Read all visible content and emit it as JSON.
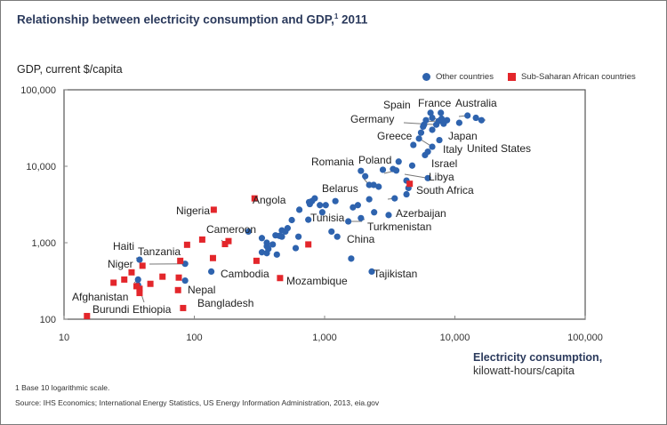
{
  "chart_data": {
    "type": "scatter",
    "title": "Relationship between electricity consumption and GDP,",
    "title_superscript": "1",
    "title_year": "2011",
    "ylabel": "GDP, current $/capita",
    "xlabel": "Electricity consumption,",
    "xlabel_unit": "kilowatt-hours/capita",
    "xscale": "log",
    "yscale": "log",
    "xlim": [
      10,
      100000
    ],
    "ylim": [
      100,
      100000
    ],
    "x_ticks": [
      10,
      100,
      1000,
      10000,
      100000
    ],
    "x_tick_labels": [
      "10",
      "100",
      "1,000",
      "10,000",
      "100,000"
    ],
    "y_ticks": [
      100,
      1000,
      10000,
      100000
    ],
    "y_tick_labels": [
      "100",
      "1,000",
      "10,000",
      "100,000"
    ],
    "grid": false,
    "legend_position": "top-right",
    "series": [
      {
        "name": "Other countries",
        "color": "#2e63ae",
        "marker": "circle",
        "points": [
          {
            "x": 38,
            "y": 600,
            "label": "Haiti"
          },
          {
            "x": 37,
            "y": 330,
            "label": "Niger"
          },
          {
            "x": 85,
            "y": 530,
            "label": "Cambodia"
          },
          {
            "x": 135,
            "y": 420,
            "label": "Bangladesh"
          },
          {
            "x": 85,
            "y": 320,
            "label": "Nepal"
          },
          {
            "x": 37,
            "y": 280
          },
          {
            "x": 260,
            "y": 1400
          },
          {
            "x": 330,
            "y": 1150
          },
          {
            "x": 360,
            "y": 1000
          },
          {
            "x": 330,
            "y": 750
          },
          {
            "x": 360,
            "y": 900
          },
          {
            "x": 400,
            "y": 950
          },
          {
            "x": 370,
            "y": 830
          },
          {
            "x": 360,
            "y": 730
          },
          {
            "x": 430,
            "y": 700
          },
          {
            "x": 470,
            "y": 1450
          },
          {
            "x": 470,
            "y": 1200
          },
          {
            "x": 420,
            "y": 1250
          },
          {
            "x": 450,
            "y": 1230
          },
          {
            "x": 500,
            "y": 1400
          },
          {
            "x": 520,
            "y": 1550
          },
          {
            "x": 560,
            "y": 1980
          },
          {
            "x": 600,
            "y": 850
          },
          {
            "x": 630,
            "y": 1200
          },
          {
            "x": 640,
            "y": 2700
          },
          {
            "x": 770,
            "y": 3200
          },
          {
            "x": 800,
            "y": 3500
          },
          {
            "x": 760,
            "y": 3400
          },
          {
            "x": 840,
            "y": 3800
          },
          {
            "x": 920,
            "y": 3100
          },
          {
            "x": 1020,
            "y": 3100
          },
          {
            "x": 960,
            "y": 2500
          },
          {
            "x": 1210,
            "y": 3500
          },
          {
            "x": 750,
            "y": 2000
          },
          {
            "x": 1130,
            "y": 1400
          },
          {
            "x": 1250,
            "y": 1200,
            "label": "Tunisia"
          },
          {
            "x": 1650,
            "y": 2900
          },
          {
            "x": 1520,
            "y": 1900,
            "label": "China"
          },
          {
            "x": 1900,
            "y": 2100,
            "label": "Turkmenistan"
          },
          {
            "x": 1800,
            "y": 3100
          },
          {
            "x": 2200,
            "y": 3700
          },
          {
            "x": 2400,
            "y": 2500,
            "label": "Azerbaijan"
          },
          {
            "x": 3100,
            "y": 2300
          },
          {
            "x": 1600,
            "y": 620
          },
          {
            "x": 2300,
            "y": 420,
            "label": "Tajikistan"
          },
          {
            "x": 1900,
            "y": 8700
          },
          {
            "x": 2050,
            "y": 7400
          },
          {
            "x": 2200,
            "y": 5700,
            "label": "Romania"
          },
          {
            "x": 2380,
            "y": 5700
          },
          {
            "x": 2600,
            "y": 5400
          },
          {
            "x": 3450,
            "y": 3800,
            "label": "Belarus"
          },
          {
            "x": 2800,
            "y": 9000
          },
          {
            "x": 3350,
            "y": 9200
          },
          {
            "x": 3550,
            "y": 8800,
            "label": "Poland"
          },
          {
            "x": 3700,
            "y": 11500
          },
          {
            "x": 4250,
            "y": 6500
          },
          {
            "x": 4400,
            "y": 5200
          },
          {
            "x": 4250,
            "y": 4300
          },
          {
            "x": 4700,
            "y": 10200
          },
          {
            "x": 6200,
            "y": 7000,
            "label": "Libya"
          },
          {
            "x": 4800,
            "y": 19000
          },
          {
            "x": 5900,
            "y": 14000
          },
          {
            "x": 6200,
            "y": 15500,
            "label": "Israel"
          },
          {
            "x": 5300,
            "y": 23000
          },
          {
            "x": 5500,
            "y": 27500,
            "label": "Greece"
          },
          {
            "x": 5700,
            "y": 33000
          },
          {
            "x": 6000,
            "y": 40000
          },
          {
            "x": 5800,
            "y": 35000,
            "label": "Spain"
          },
          {
            "x": 6500,
            "y": 50000
          },
          {
            "x": 6700,
            "y": 30000
          },
          {
            "x": 6700,
            "y": 43000
          },
          {
            "x": 7200,
            "y": 35000,
            "label": "Germany"
          },
          {
            "x": 7800,
            "y": 50000
          },
          {
            "x": 7500,
            "y": 39000,
            "label": "France"
          },
          {
            "x": 7900,
            "y": 42000
          },
          {
            "x": 8200,
            "y": 36000
          },
          {
            "x": 8700,
            "y": 40000,
            "label": "Japan"
          },
          {
            "x": 8100,
            "y": 38000
          },
          {
            "x": 6700,
            "y": 18000,
            "label": "Italy"
          },
          {
            "x": 7600,
            "y": 22000
          },
          {
            "x": 10800,
            "y": 37000
          },
          {
            "x": 12500,
            "y": 46000,
            "label": "Australia"
          },
          {
            "x": 14500,
            "y": 43000
          },
          {
            "x": 16000,
            "y": 40000,
            "label": "United States"
          }
        ]
      },
      {
        "name": "Sub-Saharan African countries",
        "color": "#e3262b",
        "marker": "square",
        "points": [
          {
            "x": 15,
            "y": 110,
            "label": "Burundi"
          },
          {
            "x": 24,
            "y": 300
          },
          {
            "x": 29,
            "y": 330
          },
          {
            "x": 33,
            "y": 410
          },
          {
            "x": 36,
            "y": 270,
            "label": "Afghanistan"
          },
          {
            "x": 38,
            "y": 250,
            "label": "Ethiopia"
          },
          {
            "x": 38,
            "y": 220
          },
          {
            "x": 40,
            "y": 500
          },
          {
            "x": 46,
            "y": 290
          },
          {
            "x": 57,
            "y": 360,
            "label": "Tanzania"
          },
          {
            "x": 76,
            "y": 350
          },
          {
            "x": 75,
            "y": 240
          },
          {
            "x": 78,
            "y": 580
          },
          {
            "x": 82,
            "y": 140
          },
          {
            "x": 88,
            "y": 940
          },
          {
            "x": 115,
            "y": 1100
          },
          {
            "x": 141,
            "y": 2700,
            "label": "Nigeria"
          },
          {
            "x": 139,
            "y": 630
          },
          {
            "x": 172,
            "y": 960,
            "label": "Cameroon"
          },
          {
            "x": 183,
            "y": 1050
          },
          {
            "x": 290,
            "y": 3800,
            "label": "Angola"
          },
          {
            "x": 300,
            "y": 580
          },
          {
            "x": 455,
            "y": 345,
            "label": "Mozambique"
          },
          {
            "x": 750,
            "y": 950
          },
          {
            "x": 4500,
            "y": 5900,
            "label": "South Africa"
          }
        ]
      }
    ],
    "annotations": [
      {
        "text": "Spain"
      },
      {
        "text": "France"
      },
      {
        "text": "Australia"
      },
      {
        "text": "Germany"
      },
      {
        "text": "Greece"
      },
      {
        "text": "Japan"
      },
      {
        "text": "Italy"
      },
      {
        "text": "United States"
      },
      {
        "text": "Israel"
      },
      {
        "text": "Romania"
      },
      {
        "text": "Poland"
      },
      {
        "text": "Libya"
      },
      {
        "text": "South Africa"
      },
      {
        "text": "Belarus"
      },
      {
        "text": "Angola"
      },
      {
        "text": "Azerbaijan"
      },
      {
        "text": "Tunisia"
      },
      {
        "text": "Turkmenistan"
      },
      {
        "text": "China"
      },
      {
        "text": "Nigeria"
      },
      {
        "text": "Cameroon"
      },
      {
        "text": "Haiti"
      },
      {
        "text": "Tanzania"
      },
      {
        "text": "Niger"
      },
      {
        "text": "Cambodia"
      },
      {
        "text": "Mozambique"
      },
      {
        "text": "Tajikistan"
      },
      {
        "text": "Nepal"
      },
      {
        "text": "Afghanistan"
      },
      {
        "text": "Bangladesh"
      },
      {
        "text": "Burundi"
      },
      {
        "text": "Ethiopia"
      }
    ]
  },
  "footnotes": {
    "note1": "1 Base 10 logarithmic scale.",
    "source": "Source: IHS Economics; International Energy Statistics, US Energy Information Administration, 2013, eia.gov"
  }
}
